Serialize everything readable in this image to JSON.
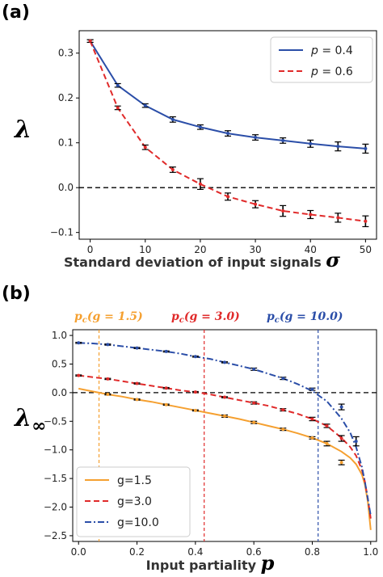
{
  "colors": {
    "blue": "#2b4ea8",
    "red": "#e02a2a",
    "orange": "#f5a030",
    "navy": "#2b4ea8",
    "axis": "#000000"
  },
  "chart_data": [
    {
      "panel_label": "(a)",
      "type": "line",
      "xlabel": "Standard deviation of input signals",
      "xlabel_symbol": "σ",
      "ylabel": "λ",
      "xlim": [
        -2,
        52
      ],
      "ylim": [
        -0.115,
        0.35
      ],
      "xticks": [
        0,
        10,
        20,
        30,
        40,
        50
      ],
      "yticks": [
        -0.1,
        0.0,
        0.1,
        0.2,
        0.3
      ],
      "ytick_labels": [
        "−0.1",
        "0.0",
        "0.1",
        "0.2",
        "0.3"
      ],
      "grid": false,
      "legend_position": "top-right",
      "hline": 0.0,
      "series": [
        {
          "name": "p = 0.4",
          "color": "#2b4ea8",
          "dash": "solid",
          "x": [
            0,
            5,
            10,
            15,
            20,
            25,
            30,
            35,
            40,
            45,
            50
          ],
          "y": [
            0.327,
            0.228,
            0.183,
            0.152,
            0.135,
            0.121,
            0.112,
            0.105,
            0.098,
            0.092,
            0.087
          ],
          "err": [
            0.003,
            0.004,
            0.004,
            0.006,
            0.005,
            0.006,
            0.006,
            0.006,
            0.008,
            0.01,
            0.01
          ]
        },
        {
          "name": "p = 0.6",
          "color": "#e02a2a",
          "dash": "dashed",
          "x": [
            0,
            5,
            10,
            15,
            20,
            25,
            30,
            35,
            40,
            45,
            50
          ],
          "y": [
            0.327,
            0.178,
            0.09,
            0.04,
            0.008,
            -0.02,
            -0.037,
            -0.052,
            -0.06,
            -0.067,
            -0.075
          ],
          "err": [
            0.003,
            0.004,
            0.005,
            0.006,
            0.012,
            0.008,
            0.008,
            0.012,
            0.009,
            0.01,
            0.012
          ]
        }
      ]
    },
    {
      "panel_label": "(b)",
      "type": "line",
      "xlabel": "Input partiality",
      "xlabel_symbol": "p",
      "ylabel": "λ",
      "ylabel_sub": "∞",
      "xlim": [
        -0.02,
        1.02
      ],
      "ylim": [
        -2.6,
        1.1
      ],
      "xticks": [
        0.0,
        0.2,
        0.4,
        0.6,
        0.8,
        1.0
      ],
      "xtick_labels": [
        "0.0",
        "0.2",
        "0.4",
        "0.6",
        "0.8",
        "1.0"
      ],
      "yticks": [
        -2.5,
        -2.0,
        -1.5,
        -1.0,
        -0.5,
        0.0,
        0.5,
        1.0
      ],
      "ytick_labels": [
        "−2.5",
        "−2.0",
        "−1.5",
        "−1.0",
        "−0.5",
        "0.0",
        "0.5",
        "1.0"
      ],
      "grid": false,
      "legend_position": "bottom-left",
      "hline": 0.0,
      "critical_lines": [
        {
          "label": "(g = 1.5)",
          "x": 0.07,
          "color": "#f5a030"
        },
        {
          "label": "(g = 3.0)",
          "x": 0.43,
          "color": "#e02a2a"
        },
        {
          "label": "(g = 10.0)",
          "x": 0.82,
          "color": "#2b4ea8"
        }
      ],
      "critical_symbol": "p",
      "critical_sub": "c",
      "series": [
        {
          "name": "g=1.5",
          "color": "#f5a030",
          "dash": "solid",
          "curve_x": [
            0.0,
            0.05,
            0.1,
            0.15,
            0.2,
            0.25,
            0.3,
            0.35,
            0.4,
            0.45,
            0.5,
            0.55,
            0.6,
            0.65,
            0.7,
            0.75,
            0.8,
            0.85,
            0.9,
            0.93,
            0.95,
            0.97,
            0.98,
            0.99,
            1.0
          ],
          "curve_y": [
            0.07,
            0.02,
            -0.03,
            -0.07,
            -0.12,
            -0.16,
            -0.21,
            -0.26,
            -0.31,
            -0.36,
            -0.41,
            -0.46,
            -0.52,
            -0.58,
            -0.64,
            -0.71,
            -0.79,
            -0.89,
            -1.03,
            -1.14,
            -1.25,
            -1.43,
            -1.6,
            -1.9,
            -2.4
          ],
          "x": [
            0.1,
            0.2,
            0.3,
            0.4,
            0.5,
            0.6,
            0.7,
            0.8,
            0.85,
            0.9
          ],
          "y": [
            -0.03,
            -0.12,
            -0.21,
            -0.31,
            -0.41,
            -0.52,
            -0.64,
            -0.79,
            -0.89,
            -1.22
          ],
          "err": [
            0.01,
            0.01,
            0.01,
            0.01,
            0.02,
            0.02,
            0.02,
            0.02,
            0.04,
            0.04
          ]
        },
        {
          "name": "g=3.0",
          "color": "#e02a2a",
          "dash": "dashed",
          "curve_x": [
            0.0,
            0.05,
            0.1,
            0.15,
            0.2,
            0.25,
            0.3,
            0.35,
            0.4,
            0.45,
            0.5,
            0.55,
            0.6,
            0.65,
            0.7,
            0.75,
            0.8,
            0.85,
            0.9,
            0.93,
            0.95,
            0.97,
            0.98,
            0.99,
            1.0
          ],
          "curve_y": [
            0.3,
            0.27,
            0.24,
            0.2,
            0.16,
            0.12,
            0.08,
            0.04,
            0.01,
            -0.03,
            -0.08,
            -0.13,
            -0.18,
            -0.23,
            -0.3,
            -0.37,
            -0.46,
            -0.58,
            -0.79,
            -0.95,
            -1.1,
            -1.35,
            -1.55,
            -1.85,
            -2.2
          ],
          "x": [
            0.0,
            0.1,
            0.2,
            0.3,
            0.4,
            0.5,
            0.6,
            0.7,
            0.8,
            0.85,
            0.9
          ],
          "y": [
            0.3,
            0.24,
            0.16,
            0.08,
            0.01,
            -0.08,
            -0.18,
            -0.3,
            -0.46,
            -0.58,
            -0.8
          ],
          "err": [
            0.01,
            0.01,
            0.01,
            0.01,
            0.01,
            0.01,
            0.02,
            0.02,
            0.03,
            0.03,
            0.05
          ]
        },
        {
          "name": "g=10.0",
          "color": "#2b4ea8",
          "dash": "dashdot",
          "curve_x": [
            0.0,
            0.05,
            0.1,
            0.15,
            0.2,
            0.25,
            0.3,
            0.35,
            0.4,
            0.45,
            0.5,
            0.55,
            0.6,
            0.65,
            0.7,
            0.75,
            0.8,
            0.85,
            0.9,
            0.93,
            0.95,
            0.97,
            0.98,
            0.99,
            1.0
          ],
          "curve_y": [
            0.87,
            0.86,
            0.84,
            0.81,
            0.78,
            0.75,
            0.72,
            0.68,
            0.63,
            0.59,
            0.53,
            0.47,
            0.41,
            0.33,
            0.25,
            0.15,
            0.03,
            -0.15,
            -0.45,
            -0.7,
            -0.95,
            -1.3,
            -1.55,
            -1.85,
            -2.15
          ],
          "x": [
            0.0,
            0.1,
            0.2,
            0.3,
            0.4,
            0.5,
            0.6,
            0.7,
            0.8,
            0.9,
            0.95
          ],
          "y": [
            0.87,
            0.84,
            0.78,
            0.72,
            0.63,
            0.53,
            0.41,
            0.25,
            0.06,
            -0.25,
            -0.85
          ],
          "err": [
            0.01,
            0.01,
            0.01,
            0.01,
            0.01,
            0.01,
            0.02,
            0.02,
            0.02,
            0.05,
            0.08
          ]
        }
      ]
    }
  ]
}
